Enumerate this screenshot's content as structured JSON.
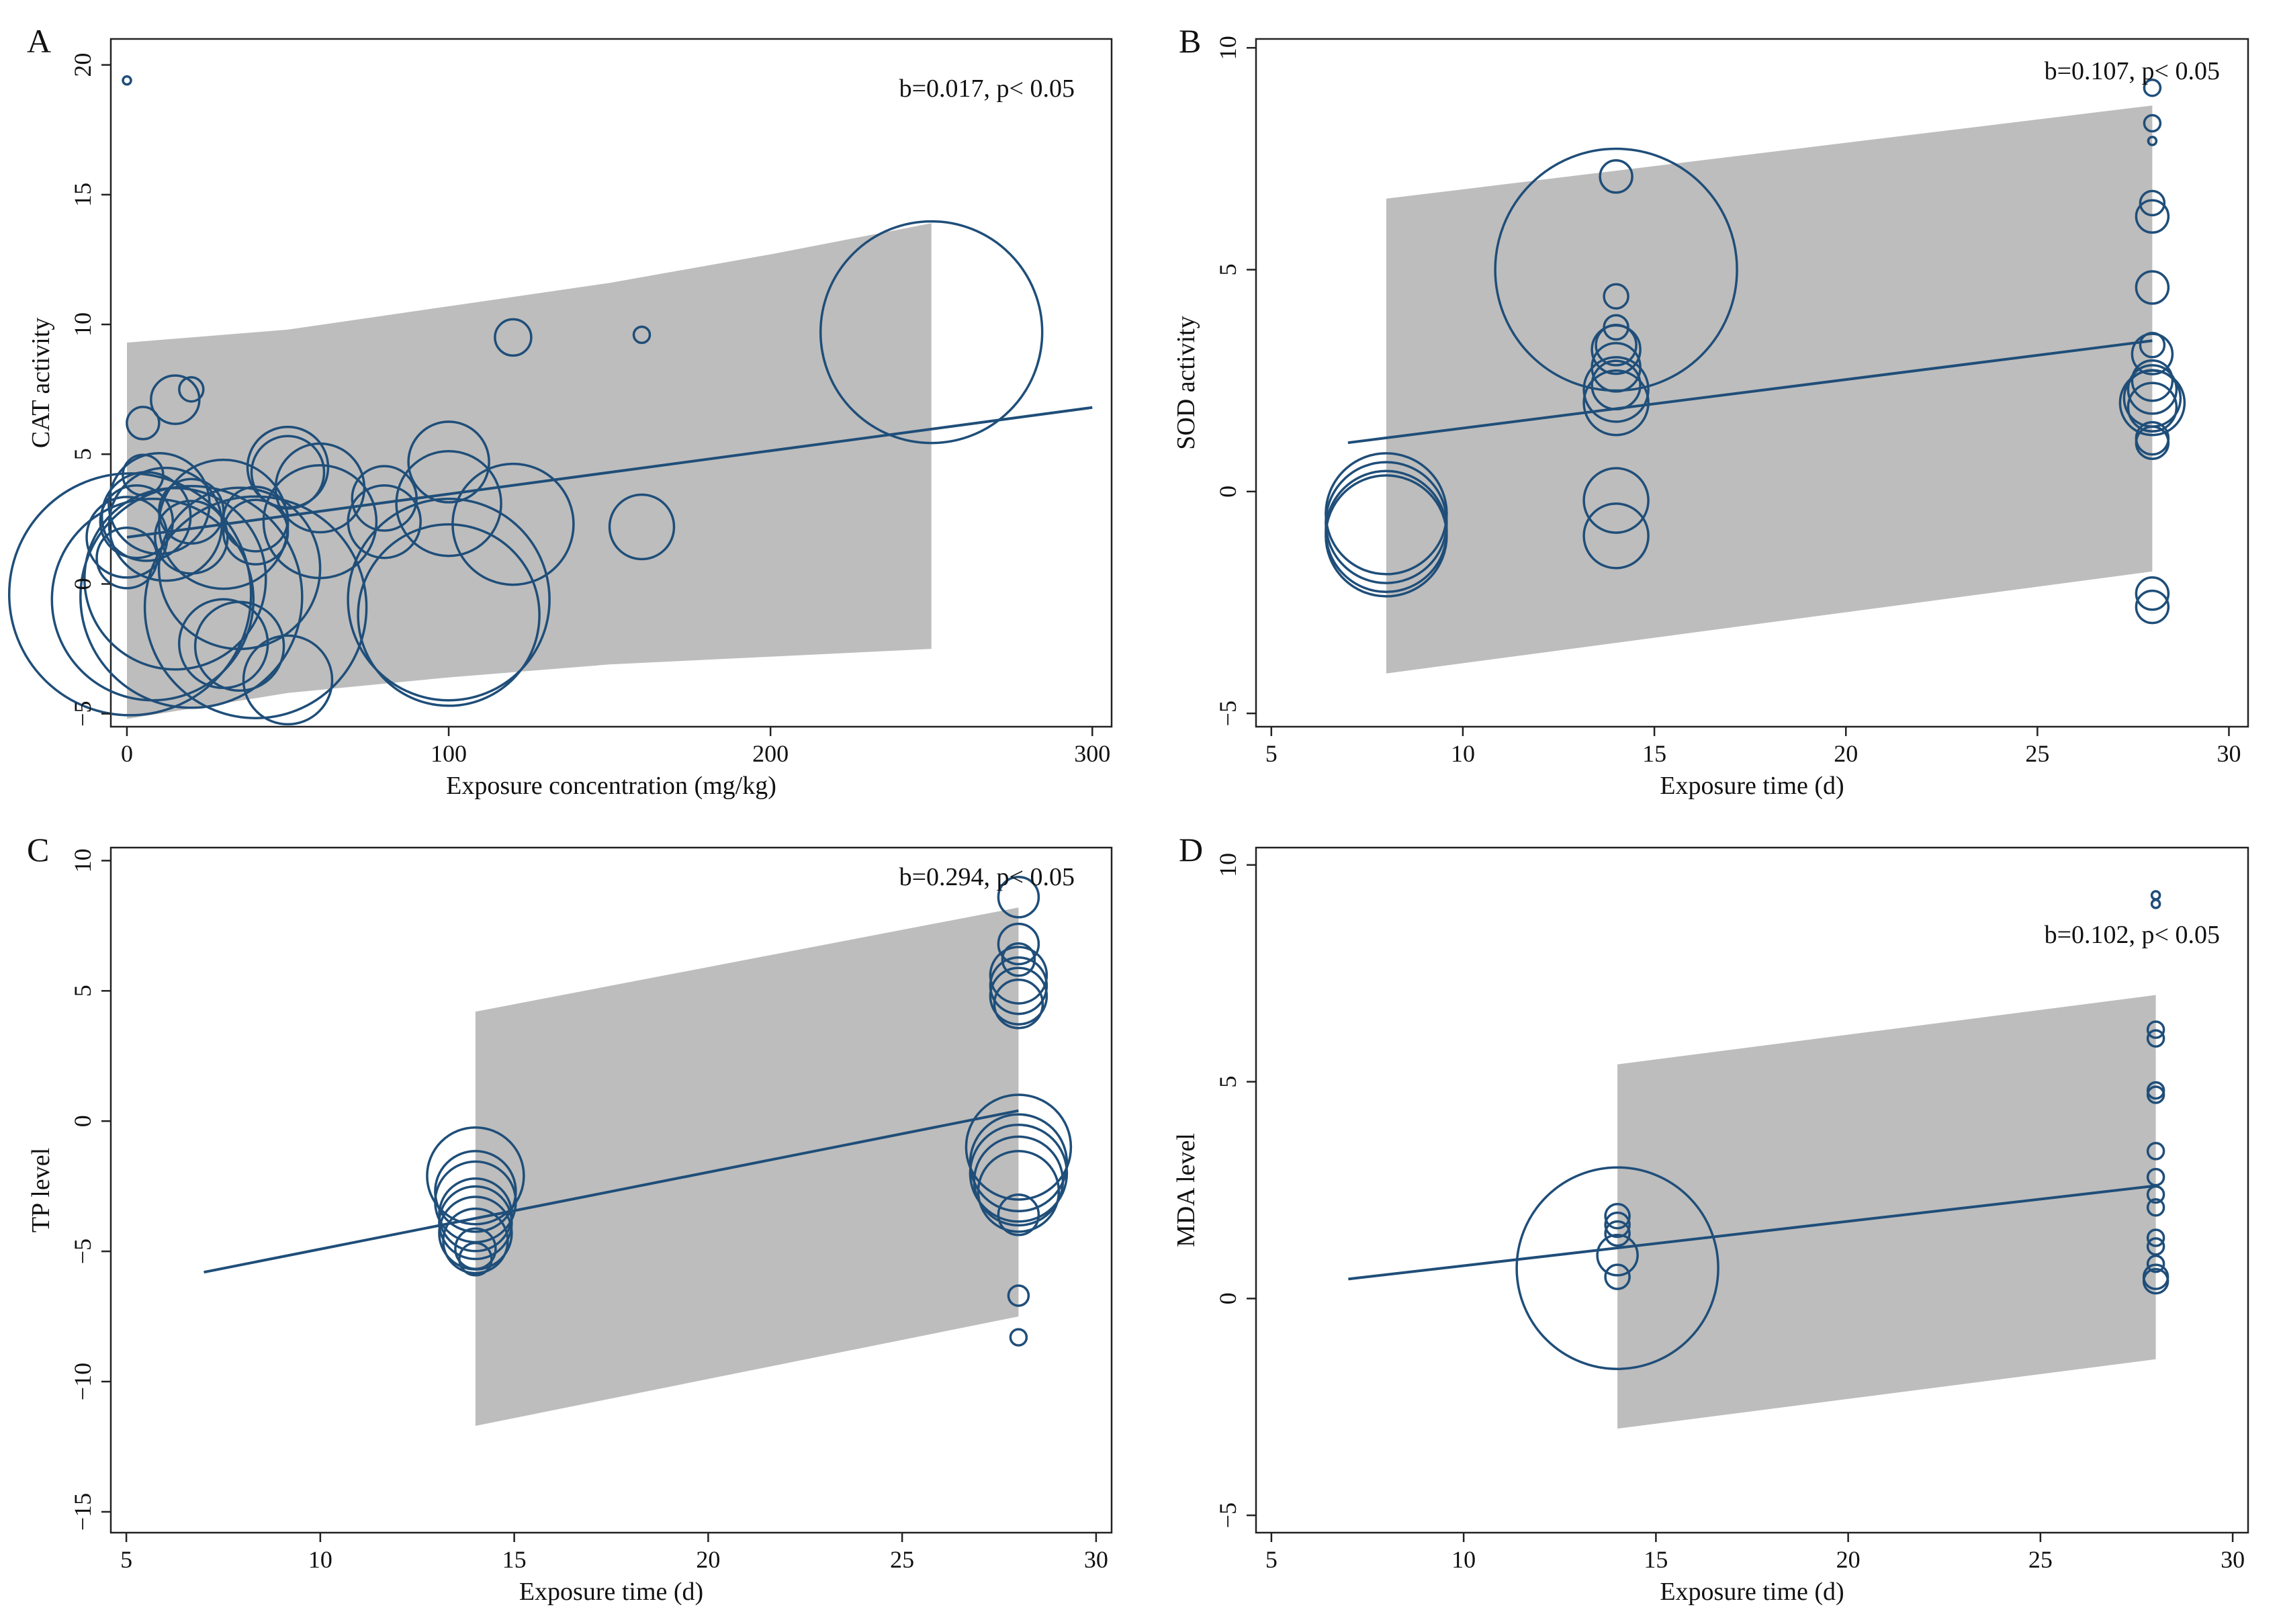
{
  "chart_data": [
    {
      "type": "scatter",
      "panel": "A",
      "xlabel": "Exposure concentration (mg/kg)",
      "ylabel": "CAT activity",
      "annotation": "b=0.017, p< 0.05",
      "xlim": [
        -5,
        306
      ],
      "ylim": [
        -5.5,
        21
      ],
      "xticks": [
        0,
        100,
        200,
        300
      ],
      "yticks": [
        -5,
        0,
        5,
        10,
        15,
        20
      ],
      "fit": {
        "x": [
          0,
          300
        ],
        "y": [
          1.8,
          6.8
        ]
      },
      "band": {
        "x": [
          0,
          50,
          100,
          150,
          200,
          250
        ],
        "lower": [
          -5.2,
          -4.2,
          -3.6,
          -3.1,
          -2.8,
          -2.5
        ],
        "upper": [
          9.3,
          9.8,
          10.7,
          11.6,
          12.7,
          13.9
        ]
      },
      "points": [
        {
          "x": 0,
          "y": 19.4,
          "w": 0.2
        },
        {
          "x": 5,
          "y": 6.2,
          "w": 0.8
        },
        {
          "x": 15,
          "y": 7.1,
          "w": 1.2
        },
        {
          "x": 20,
          "y": 7.5,
          "w": 0.6
        },
        {
          "x": 5,
          "y": 4.2,
          "w": 1.0
        },
        {
          "x": 0,
          "y": 1.8,
          "w": 2.0
        },
        {
          "x": 3,
          "y": 2.4,
          "w": 1.8
        },
        {
          "x": 6,
          "y": 2.6,
          "w": 2.2
        },
        {
          "x": 10,
          "y": 3.1,
          "w": 2.5
        },
        {
          "x": 12,
          "y": 2.3,
          "w": 2.8
        },
        {
          "x": 20,
          "y": 1.8,
          "w": 1.8
        },
        {
          "x": 20,
          "y": 2.8,
          "w": 1.6
        },
        {
          "x": 0,
          "y": 1.0,
          "w": 1.5
        },
        {
          "x": 1,
          "y": -0.4,
          "w": 6.0
        },
        {
          "x": 8,
          "y": -0.6,
          "w": 5.0
        },
        {
          "x": 15,
          "y": 0.2,
          "w": 4.5
        },
        {
          "x": 20,
          "y": -0.5,
          "w": 5.5
        },
        {
          "x": 30,
          "y": 2.3,
          "w": 3.2
        },
        {
          "x": 35,
          "y": 0.6,
          "w": 4.0
        },
        {
          "x": 40,
          "y": -0.9,
          "w": 5.5
        },
        {
          "x": 30,
          "y": -2.3,
          "w": 2.2
        },
        {
          "x": 35,
          "y": -2.4,
          "w": 2.2
        },
        {
          "x": 40,
          "y": 2.5,
          "w": 1.6
        },
        {
          "x": 40,
          "y": 2.0,
          "w": 1.6
        },
        {
          "x": 50,
          "y": 4.5,
          "w": 2.0
        },
        {
          "x": 50,
          "y": 4.3,
          "w": 1.8
        },
        {
          "x": 50,
          "y": -3.7,
          "w": 2.2
        },
        {
          "x": 60,
          "y": 3.7,
          "w": 2.2
        },
        {
          "x": 60,
          "y": 2.4,
          "w": 2.8
        },
        {
          "x": 80,
          "y": 3.3,
          "w": 1.6
        },
        {
          "x": 80,
          "y": 2.4,
          "w": 1.8
        },
        {
          "x": 100,
          "y": 4.7,
          "w": 2.0
        },
        {
          "x": 100,
          "y": 3.1,
          "w": 2.6
        },
        {
          "x": 100,
          "y": -0.6,
          "w": 5.0
        },
        {
          "x": 100,
          "y": -1.2,
          "w": 4.5
        },
        {
          "x": 120,
          "y": 9.5,
          "w": 0.9
        },
        {
          "x": 120,
          "y": 2.3,
          "w": 3.0
        },
        {
          "x": 160,
          "y": 9.6,
          "w": 0.4
        },
        {
          "x": 160,
          "y": 2.2,
          "w": 1.6
        },
        {
          "x": 250,
          "y": 9.7,
          "w": 5.5
        }
      ]
    },
    {
      "type": "scatter",
      "panel": "B",
      "xlabel": "Exposure time (d)",
      "ylabel": "SOD activity",
      "annotation": "b=0.107, p< 0.05",
      "xlim": [
        4.6,
        30.5
      ],
      "ylim": [
        -5.3,
        10.2
      ],
      "xticks": [
        5,
        10,
        15,
        20,
        25,
        30
      ],
      "yticks": [
        -5,
        0,
        5,
        10
      ],
      "fit": {
        "x": [
          7,
          28
        ],
        "y": [
          1.1,
          3.4
        ]
      },
      "band": {
        "x": [
          8,
          28
        ],
        "lower": [
          -4.1,
          -1.8
        ],
        "upper": [
          6.6,
          8.7
        ]
      },
      "points": [
        {
          "x": 8,
          "y": -0.5,
          "w": 3.0
        },
        {
          "x": 8,
          "y": -0.7,
          "w": 3.0
        },
        {
          "x": 8,
          "y": -0.9,
          "w": 3.0
        },
        {
          "x": 8,
          "y": -1.0,
          "w": 3.0
        },
        {
          "x": 14,
          "y": 7.1,
          "w": 0.8
        },
        {
          "x": 14,
          "y": 5.0,
          "w": 6.0
        },
        {
          "x": 14,
          "y": 4.4,
          "w": 0.6
        },
        {
          "x": 14,
          "y": 3.7,
          "w": 0.6
        },
        {
          "x": 14,
          "y": 3.3,
          "w": 1.0
        },
        {
          "x": 14,
          "y": 3.2,
          "w": 1.2
        },
        {
          "x": 14,
          "y": 2.8,
          "w": 1.2
        },
        {
          "x": 14,
          "y": 2.4,
          "w": 1.2
        },
        {
          "x": 14,
          "y": 2.3,
          "w": 1.6
        },
        {
          "x": 14,
          "y": 2.0,
          "w": 1.6
        },
        {
          "x": 14,
          "y": -0.2,
          "w": 1.6
        },
        {
          "x": 14,
          "y": -1.0,
          "w": 1.6
        },
        {
          "x": 28,
          "y": 9.1,
          "w": 0.4
        },
        {
          "x": 28,
          "y": 8.3,
          "w": 0.4
        },
        {
          "x": 28,
          "y": 7.9,
          "w": 0.2
        },
        {
          "x": 28,
          "y": 6.5,
          "w": 0.6
        },
        {
          "x": 28,
          "y": 6.2,
          "w": 0.8
        },
        {
          "x": 28,
          "y": 4.6,
          "w": 0.8
        },
        {
          "x": 28,
          "y": 3.3,
          "w": 0.6
        },
        {
          "x": 28,
          "y": 3.1,
          "w": 1.0
        },
        {
          "x": 28,
          "y": 2.5,
          "w": 1.0
        },
        {
          "x": 28,
          "y": 2.3,
          "w": 1.2
        },
        {
          "x": 28,
          "y": 2.1,
          "w": 1.4
        },
        {
          "x": 28,
          "y": 2.0,
          "w": 1.6
        },
        {
          "x": 28,
          "y": 1.9,
          "w": 1.2
        },
        {
          "x": 28,
          "y": 1.2,
          "w": 0.8
        },
        {
          "x": 28,
          "y": 1.1,
          "w": 0.8
        },
        {
          "x": 28,
          "y": -2.3,
          "w": 0.8
        },
        {
          "x": 28,
          "y": -2.6,
          "w": 0.8
        }
      ]
    },
    {
      "type": "scatter",
      "panel": "C",
      "xlabel": "Exposure time (d)",
      "ylabel": "TP level",
      "annotation": "b=0.294, p< 0.05",
      "xlim": [
        4.6,
        30.4
      ],
      "ylim": [
        -15.8,
        10.5
      ],
      "xticks": [
        5,
        10,
        15,
        20,
        25,
        30
      ],
      "yticks": [
        -15,
        -10,
        -5,
        0,
        5,
        10
      ],
      "fit": {
        "x": [
          7,
          28
        ],
        "y": [
          -5.8,
          0.4
        ]
      },
      "band": {
        "x": [
          14,
          28
        ],
        "lower": [
          -11.7,
          -7.5
        ],
        "upper": [
          4.2,
          8.2
        ]
      },
      "points": [
        {
          "x": 14,
          "y": -2.1,
          "w": 2.4
        },
        {
          "x": 14,
          "y": -2.7,
          "w": 2.0
        },
        {
          "x": 14,
          "y": -3.1,
          "w": 2.0
        },
        {
          "x": 14,
          "y": -3.6,
          "w": 1.8
        },
        {
          "x": 14,
          "y": -3.9,
          "w": 1.8
        },
        {
          "x": 14,
          "y": -4.3,
          "w": 1.8
        },
        {
          "x": 14,
          "y": -4.6,
          "w": 1.6
        },
        {
          "x": 14,
          "y": -4.9,
          "w": 1.0
        },
        {
          "x": 14,
          "y": -5.3,
          "w": 0.8
        },
        {
          "x": 28,
          "y": 8.6,
          "w": 1.0
        },
        {
          "x": 28,
          "y": 6.8,
          "w": 1.0
        },
        {
          "x": 28,
          "y": 6.2,
          "w": 0.8
        },
        {
          "x": 28,
          "y": 5.6,
          "w": 1.4
        },
        {
          "x": 28,
          "y": 5.2,
          "w": 1.4
        },
        {
          "x": 28,
          "y": 4.8,
          "w": 1.4
        },
        {
          "x": 28,
          "y": 4.5,
          "w": 1.2
        },
        {
          "x": 28,
          "y": -1.0,
          "w": 2.6
        },
        {
          "x": 28,
          "y": -1.6,
          "w": 2.4
        },
        {
          "x": 28,
          "y": -2.0,
          "w": 2.4
        },
        {
          "x": 28,
          "y": -2.3,
          "w": 2.2
        },
        {
          "x": 28,
          "y": -2.7,
          "w": 2.0
        },
        {
          "x": 28,
          "y": -3.6,
          "w": 1.0
        },
        {
          "x": 28,
          "y": -6.7,
          "w": 0.5
        },
        {
          "x": 28,
          "y": -8.3,
          "w": 0.4
        }
      ]
    },
    {
      "type": "scatter",
      "panel": "D",
      "xlabel": "Exposure time (d)",
      "ylabel": "MDA level",
      "annotation": "b=0.102, p< 0.05",
      "xlim": [
        4.6,
        30.4
      ],
      "ylim": [
        -5.4,
        10.4
      ],
      "xticks": [
        5,
        10,
        15,
        20,
        25,
        30
      ],
      "yticks": [
        -5,
        0,
        5,
        10
      ],
      "fit": {
        "x": [
          7,
          28
        ],
        "y": [
          0.45,
          2.6
        ]
      },
      "band": {
        "x": [
          14,
          28
        ],
        "lower": [
          -3.0,
          -1.4
        ],
        "upper": [
          5.4,
          7.0
        ]
      },
      "points": [
        {
          "x": 14,
          "y": 1.9,
          "w": 0.6
        },
        {
          "x": 14,
          "y": 1.7,
          "w": 0.6
        },
        {
          "x": 14,
          "y": 1.5,
          "w": 0.6
        },
        {
          "x": 14,
          "y": 1.0,
          "w": 1.0
        },
        {
          "x": 14,
          "y": 0.7,
          "w": 5.0
        },
        {
          "x": 14,
          "y": 0.5,
          "w": 0.6
        },
        {
          "x": 28,
          "y": 9.3,
          "w": 0.2
        },
        {
          "x": 28,
          "y": 9.1,
          "w": 0.2
        },
        {
          "x": 28,
          "y": 6.2,
          "w": 0.4
        },
        {
          "x": 28,
          "y": 6.0,
          "w": 0.4
        },
        {
          "x": 28,
          "y": 4.8,
          "w": 0.4
        },
        {
          "x": 28,
          "y": 4.7,
          "w": 0.4
        },
        {
          "x": 28,
          "y": 3.4,
          "w": 0.4
        },
        {
          "x": 28,
          "y": 2.8,
          "w": 0.4
        },
        {
          "x": 28,
          "y": 2.4,
          "w": 0.4
        },
        {
          "x": 28,
          "y": 2.1,
          "w": 0.4
        },
        {
          "x": 28,
          "y": 1.4,
          "w": 0.4
        },
        {
          "x": 28,
          "y": 1.2,
          "w": 0.4
        },
        {
          "x": 28,
          "y": 0.8,
          "w": 0.4
        },
        {
          "x": 28,
          "y": 0.5,
          "w": 0.6
        },
        {
          "x": 28,
          "y": 0.4,
          "w": 0.6
        }
      ]
    }
  ]
}
